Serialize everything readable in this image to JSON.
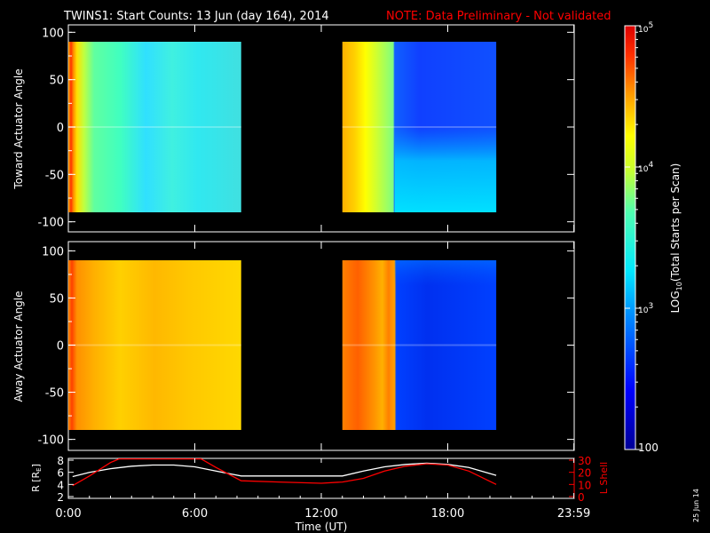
{
  "title": {
    "main": "TWINS1: Start Counts: 13 Jun (day 164), 2014",
    "note": "NOTE: Data Preliminary - Not validated",
    "note_color": "#ff0000"
  },
  "date_stamp": "25 Jun 14",
  "chart_data": [
    {
      "type": "heatmap",
      "ylabel": "Toward Actuator Angle",
      "ylim": [
        -90,
        90
      ],
      "yticks": [
        "100",
        "50",
        "0",
        "-50",
        "-100"
      ],
      "xlim_hours": [
        0,
        24
      ],
      "data_blocks": [
        {
          "x_start": 0.0,
          "x_end": 8.2
        },
        {
          "x_start": 13.0,
          "x_end": 20.3
        }
      ],
      "grid": false
    },
    {
      "type": "heatmap",
      "ylabel": "Away Actuator Angle",
      "ylim": [
        -90,
        90
      ],
      "yticks": [
        "100",
        "50",
        "0",
        "-50",
        "-100"
      ],
      "xlim_hours": [
        0,
        24
      ],
      "data_blocks": [
        {
          "x_start": 0.0,
          "x_end": 8.2
        },
        {
          "x_start": 13.0,
          "x_end": 20.3
        }
      ],
      "grid": false
    },
    {
      "type": "line",
      "ylabel_left": "R [R",
      "ylabel_left_sub": "E",
      "ylabel_left_end": "]",
      "ylabel_right": "L Shell",
      "right_axis_color": "#ff0000",
      "left_ylim": [
        2,
        8
      ],
      "left_yticks": [
        "8",
        "6",
        "4",
        "2"
      ],
      "right_ylim": [
        0,
        30
      ],
      "right_yticks": [
        "30",
        "20",
        "10",
        "0"
      ],
      "xlabel": "Time (UT)",
      "xticks": [
        "0:00",
        "6:00",
        "12:00",
        "18:00",
        "23:59"
      ],
      "xtick_hours": [
        0,
        6,
        12,
        18,
        23.983
      ],
      "series": [
        {
          "axis": "left",
          "color": "#ffffff",
          "x": [
            0.2,
            1.0,
            2.0,
            3.0,
            4.0,
            5.0,
            6.0,
            7.0,
            8.2,
            13.0,
            14.0,
            15.0,
            16.0,
            17.0,
            18.0,
            19.0,
            20.3
          ],
          "y": [
            5.3,
            6.0,
            6.6,
            7.0,
            7.2,
            7.2,
            6.9,
            6.2,
            5.4,
            5.4,
            6.2,
            6.9,
            7.3,
            7.5,
            7.3,
            6.8,
            5.5
          ]
        },
        {
          "axis": "right",
          "color": "#ff0000",
          "x": [
            0.2,
            1.0,
            2.0,
            2.4,
            6.3,
            7.0,
            8.2,
            10.0,
            12.0,
            13.0,
            14.0,
            15.0,
            16.0,
            17.0,
            18.0,
            19.0,
            20.3
          ],
          "y": [
            9,
            17,
            28,
            31,
            31,
            24,
            13,
            12,
            11,
            12,
            15,
            21,
            25,
            27,
            26,
            21,
            10
          ]
        }
      ]
    }
  ],
  "colorbar": {
    "scale": "log",
    "range": [
      100,
      100000
    ],
    "ticks": [
      {
        "value": 100000,
        "base": "10",
        "exp": "5"
      },
      {
        "value": 10000,
        "base": "10",
        "exp": "4"
      },
      {
        "value": 1000,
        "base": "10",
        "exp": "3"
      },
      {
        "value": 100,
        "base": "100",
        "exp": ""
      }
    ],
    "label_main": "LOG",
    "label_sub": "10",
    "label_rest": "(Total Starts per Scan)"
  }
}
